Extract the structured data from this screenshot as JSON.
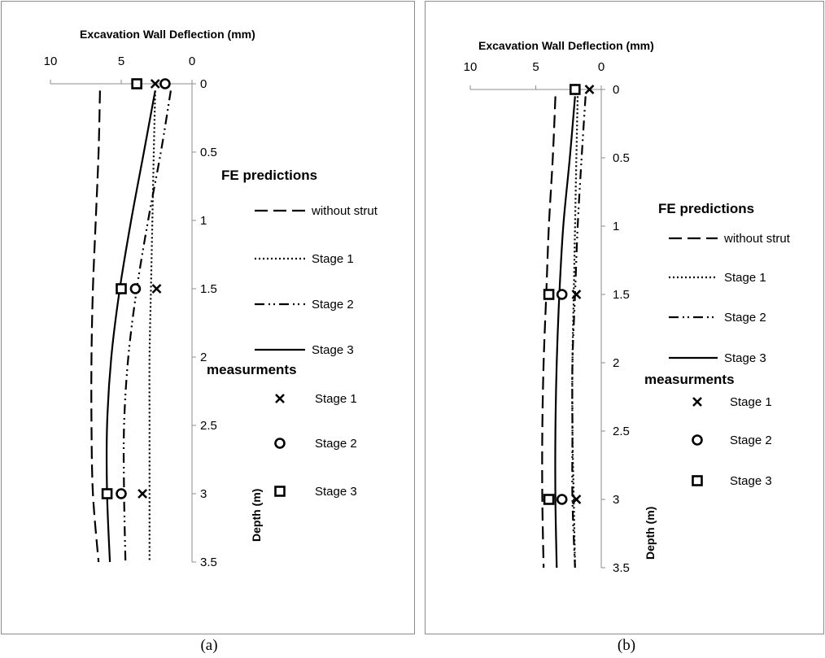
{
  "chart_data": [
    {
      "type": "line",
      "panel_label": "(a)",
      "title": "Excavation Wall Deflection (mm)",
      "ylabel": "Depth (m)",
      "xlim": [
        10,
        0
      ],
      "x_reversed": true,
      "x_ticks": [
        "10",
        "5",
        "0"
      ],
      "ylim": [
        0,
        3.5
      ],
      "y_reversed": true,
      "y_ticks": [
        "0",
        "0.5",
        "1",
        "1.5",
        "2",
        "2.5",
        "3",
        "3.5"
      ],
      "grid": false,
      "legend_position": "right",
      "legend_groups": [
        "FE predictions",
        "measurments"
      ],
      "series": [
        {
          "name": "without strut",
          "group": "FE predictions",
          "style": "dash",
          "points": [
            [
              6.5,
              0.05
            ],
            [
              6.6,
              0.5
            ],
            [
              6.8,
              1.0
            ],
            [
              7.0,
              1.5
            ],
            [
              7.1,
              2.0
            ],
            [
              7.1,
              2.5
            ],
            [
              7.0,
              3.0
            ],
            [
              6.6,
              3.5
            ]
          ]
        },
        {
          "name": "Stage 1",
          "group": "FE predictions",
          "style": "dot",
          "points": [
            [
              2.6,
              0.05
            ],
            [
              2.7,
              0.5
            ],
            [
              2.8,
              1.0
            ],
            [
              2.9,
              1.5
            ],
            [
              3.0,
              2.0
            ],
            [
              3.0,
              2.5
            ],
            [
              3.0,
              3.0
            ],
            [
              3.0,
              3.5
            ]
          ]
        },
        {
          "name": "Stage 2",
          "group": "FE predictions",
          "style": "dashdotdot",
          "points": [
            [
              1.5,
              0.05
            ],
            [
              2.2,
              0.5
            ],
            [
              3.1,
              1.0
            ],
            [
              3.9,
              1.5
            ],
            [
              4.5,
              2.0
            ],
            [
              4.8,
              2.5
            ],
            [
              4.8,
              3.0
            ],
            [
              4.7,
              3.5
            ]
          ]
        },
        {
          "name": "Stage 3",
          "group": "FE predictions",
          "style": "solid",
          "points": [
            [
              2.6,
              0.05
            ],
            [
              3.4,
              0.5
            ],
            [
              4.3,
              1.0
            ],
            [
              5.1,
              1.5
            ],
            [
              5.7,
              2.0
            ],
            [
              6.0,
              2.5
            ],
            [
              6.0,
              3.0
            ],
            [
              5.8,
              3.5
            ]
          ]
        },
        {
          "name": "Stage 1",
          "group": "measurments",
          "marker": "x",
          "points": [
            [
              2.6,
              0
            ],
            [
              2.5,
              1.5
            ],
            [
              3.5,
              3.0
            ]
          ]
        },
        {
          "name": "Stage 2",
          "group": "measurments",
          "marker": "circle",
          "points": [
            [
              1.9,
              0
            ],
            [
              4.0,
              1.5
            ],
            [
              5.0,
              3.0
            ]
          ]
        },
        {
          "name": "Stage 3",
          "group": "measurments",
          "marker": "square",
          "points": [
            [
              3.9,
              0
            ],
            [
              5.0,
              1.5
            ],
            [
              6.0,
              3.0
            ]
          ]
        }
      ]
    },
    {
      "type": "line",
      "panel_label": "(b)",
      "title": "Excavation Wall Deflection (mm)",
      "ylabel": "Depth (m)",
      "xlim": [
        10,
        0
      ],
      "x_reversed": true,
      "x_ticks": [
        "10",
        "5",
        "0"
      ],
      "ylim": [
        0,
        3.5
      ],
      "y_reversed": true,
      "y_ticks": [
        "0",
        "0.5",
        "1",
        "1.5",
        "2",
        "2.5",
        "3",
        "3.5"
      ],
      "grid": false,
      "legend_position": "right",
      "legend_groups": [
        "FE predictions",
        "measurments"
      ],
      "series": [
        {
          "name": "without strut",
          "group": "FE predictions",
          "style": "dash",
          "points": [
            [
              3.5,
              0.05
            ],
            [
              3.7,
              0.5
            ],
            [
              4.0,
              1.0
            ],
            [
              4.2,
              1.5
            ],
            [
              4.4,
              2.0
            ],
            [
              4.5,
              2.5
            ],
            [
              4.5,
              3.0
            ],
            [
              4.4,
              3.5
            ]
          ]
        },
        {
          "name": "Stage 1",
          "group": "FE predictions",
          "style": "dot",
          "points": [
            [
              1.8,
              0.05
            ],
            [
              1.9,
              0.5
            ],
            [
              2.0,
              1.0
            ],
            [
              2.1,
              1.5
            ],
            [
              2.2,
              2.0
            ],
            [
              2.2,
              2.5
            ],
            [
              2.1,
              3.0
            ],
            [
              2.0,
              3.5
            ]
          ]
        },
        {
          "name": "Stage 2",
          "group": "FE predictions",
          "style": "dashdotdot",
          "points": [
            [
              1.2,
              0.05
            ],
            [
              1.5,
              0.5
            ],
            [
              1.8,
              1.0
            ],
            [
              2.0,
              1.5
            ],
            [
              2.2,
              2.0
            ],
            [
              2.2,
              2.5
            ],
            [
              2.2,
              3.0
            ],
            [
              2.0,
              3.5
            ]
          ]
        },
        {
          "name": "Stage 3",
          "group": "FE predictions",
          "style": "solid",
          "points": [
            [
              2.0,
              0.05
            ],
            [
              2.4,
              0.5
            ],
            [
              2.9,
              1.0
            ],
            [
              3.2,
              1.5
            ],
            [
              3.4,
              2.0
            ],
            [
              3.5,
              2.5
            ],
            [
              3.5,
              3.0
            ],
            [
              3.4,
              3.5
            ]
          ]
        },
        {
          "name": "Stage 1",
          "group": "measurments",
          "marker": "x",
          "points": [
            [
              0.9,
              0
            ],
            [
              1.9,
              1.5
            ],
            [
              1.9,
              3.0
            ]
          ]
        },
        {
          "name": "Stage 2",
          "group": "measurments",
          "marker": "circle",
          "points": [
            [
              2.0,
              0
            ],
            [
              3.0,
              1.5
            ],
            [
              3.0,
              3.0
            ]
          ]
        },
        {
          "name": "Stage 3",
          "group": "measurments",
          "marker": "square",
          "points": [
            [
              2.0,
              0
            ],
            [
              4.0,
              1.5
            ],
            [
              4.0,
              3.0
            ]
          ]
        }
      ]
    }
  ]
}
